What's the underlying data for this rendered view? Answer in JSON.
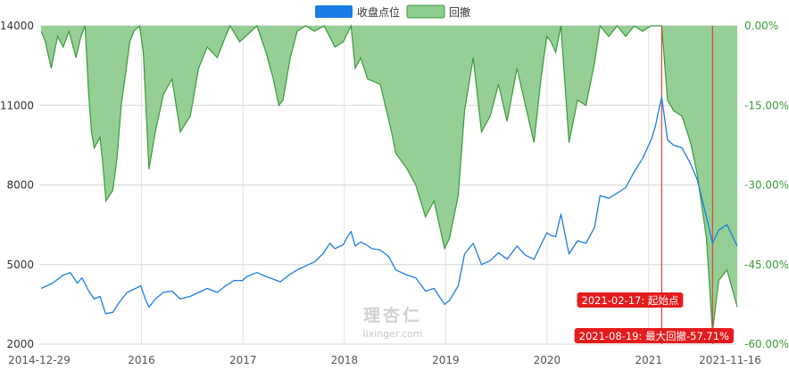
{
  "chart_data": {
    "type": "line",
    "x_range": [
      "2014-12-29",
      "2021-11-16"
    ],
    "x_tick_labels": [
      "2014-12-29",
      "2016",
      "2017",
      "2018",
      "2019",
      "2020",
      "2021",
      "2021-11-16"
    ],
    "y_left": {
      "range": [
        2000,
        14000
      ],
      "ticks": [
        2000,
        5000,
        8000,
        11000,
        14000
      ]
    },
    "y_right": {
      "range": [
        -0.6,
        0.0
      ],
      "tick_labels": [
        "0.00%",
        "-15.00%",
        "-30.00%",
        "-45.00%",
        "-60.00%"
      ]
    },
    "grid": true,
    "legend": {
      "position": "top-center"
    },
    "series": [
      {
        "name": "收盘点位",
        "axis": "left",
        "color": "#1a7de6",
        "points": [
          [
            "2015-01-05",
            4100
          ],
          [
            "2015-02-15",
            4300
          ],
          [
            "2015-03-25",
            4600
          ],
          [
            "2015-04-20",
            4700
          ],
          [
            "2015-05-15",
            4300
          ],
          [
            "2015-06-01",
            4500
          ],
          [
            "2015-06-25",
            4000
          ],
          [
            "2015-07-15",
            3700
          ],
          [
            "2015-08-05",
            3800
          ],
          [
            "2015-08-25",
            3150
          ],
          [
            "2015-09-20",
            3200
          ],
          [
            "2015-10-15",
            3600
          ],
          [
            "2015-11-10",
            3950
          ],
          [
            "2015-12-01",
            4050
          ],
          [
            "2015-12-30",
            4200
          ],
          [
            "2016-01-15",
            3700
          ],
          [
            "2016-01-28",
            3400
          ],
          [
            "2016-02-20",
            3700
          ],
          [
            "2016-03-20",
            3950
          ],
          [
            "2016-04-20",
            4000
          ],
          [
            "2016-05-20",
            3700
          ],
          [
            "2016-06-25",
            3800
          ],
          [
            "2016-07-25",
            3950
          ],
          [
            "2016-08-25",
            4100
          ],
          [
            "2016-09-30",
            3950
          ],
          [
            "2016-10-30",
            4200
          ],
          [
            "2016-11-30",
            4400
          ],
          [
            "2016-12-30",
            4400
          ],
          [
            "2017-01-15",
            4550
          ],
          [
            "2017-02-20",
            4700
          ],
          [
            "2017-03-25",
            4550
          ],
          [
            "2017-04-20",
            4450
          ],
          [
            "2017-05-15",
            4350
          ],
          [
            "2017-06-15",
            4600
          ],
          [
            "2017-07-15",
            4800
          ],
          [
            "2017-08-15",
            4950
          ],
          [
            "2017-09-15",
            5100
          ],
          [
            "2017-10-15",
            5400
          ],
          [
            "2017-11-10",
            5800
          ],
          [
            "2017-11-28",
            5600
          ],
          [
            "2017-12-28",
            5750
          ],
          [
            "2018-01-15",
            6100
          ],
          [
            "2018-01-25",
            6250
          ],
          [
            "2018-02-09",
            5700
          ],
          [
            "2018-03-01",
            5850
          ],
          [
            "2018-03-20",
            5750
          ],
          [
            "2018-04-10",
            5600
          ],
          [
            "2018-05-10",
            5550
          ],
          [
            "2018-06-10",
            5300
          ],
          [
            "2018-07-05",
            4800
          ],
          [
            "2018-08-15",
            4600
          ],
          [
            "2018-09-15",
            4500
          ],
          [
            "2018-10-20",
            4000
          ],
          [
            "2018-11-20",
            4100
          ],
          [
            "2018-12-28",
            3500
          ],
          [
            "2019-01-15",
            3650
          ],
          [
            "2019-02-15",
            4200
          ],
          [
            "2019-03-10",
            5400
          ],
          [
            "2019-04-10",
            5800
          ],
          [
            "2019-05-10",
            5000
          ],
          [
            "2019-06-10",
            5150
          ],
          [
            "2019-07-10",
            5450
          ],
          [
            "2019-08-10",
            5200
          ],
          [
            "2019-09-15",
            5700
          ],
          [
            "2019-10-15",
            5350
          ],
          [
            "2019-11-15",
            5200
          ],
          [
            "2019-12-31",
            6200
          ],
          [
            "2020-01-15",
            6100
          ],
          [
            "2020-02-01",
            6050
          ],
          [
            "2020-02-20",
            6900
          ],
          [
            "2020-03-20",
            5400
          ],
          [
            "2020-04-20",
            5900
          ],
          [
            "2020-05-20",
            5800
          ],
          [
            "2020-06-20",
            6400
          ],
          [
            "2020-07-10",
            7600
          ],
          [
            "2020-08-10",
            7500
          ],
          [
            "2020-09-10",
            7700
          ],
          [
            "2020-10-10",
            7900
          ],
          [
            "2020-11-10",
            8500
          ],
          [
            "2020-12-10",
            9000
          ],
          [
            "2021-01-10",
            9700
          ],
          [
            "2021-01-25",
            10200
          ],
          [
            "2021-02-10",
            11000
          ],
          [
            "2021-02-17",
            11300
          ],
          [
            "2021-03-01",
            10400
          ],
          [
            "2021-03-10",
            9700
          ],
          [
            "2021-04-01",
            9500
          ],
          [
            "2021-05-01",
            9400
          ],
          [
            "2021-06-01",
            8800
          ],
          [
            "2021-06-25",
            8200
          ],
          [
            "2021-07-28",
            6800
          ],
          [
            "2021-08-19",
            5800
          ],
          [
            "2021-09-10",
            6300
          ],
          [
            "2021-10-10",
            6500
          ],
          [
            "2021-11-16",
            5700
          ]
        ]
      },
      {
        "name": "回撤",
        "axis": "right",
        "type": "area",
        "color": "#3a9a3a",
        "fill": "#8fcc8f",
        "points": [
          [
            "2015-01-05",
            -0.01
          ],
          [
            "2015-01-20",
            -0.03
          ],
          [
            "2015-02-10",
            -0.08
          ],
          [
            "2015-03-05",
            -0.02
          ],
          [
            "2015-03-25",
            -0.04
          ],
          [
            "2015-04-15",
            -0.01
          ],
          [
            "2015-05-10",
            -0.06
          ],
          [
            "2015-05-28",
            -0.02
          ],
          [
            "2015-06-12",
            -0.0
          ],
          [
            "2015-06-25",
            -0.13
          ],
          [
            "2015-07-05",
            -0.2
          ],
          [
            "2015-07-15",
            -0.23
          ],
          [
            "2015-08-05",
            -0.21
          ],
          [
            "2015-08-15",
            -0.26
          ],
          [
            "2015-08-26",
            -0.33
          ],
          [
            "2015-09-20",
            -0.31
          ],
          [
            "2015-10-05",
            -0.25
          ],
          [
            "2015-10-20",
            -0.15
          ],
          [
            "2015-11-05",
            -0.09
          ],
          [
            "2015-11-20",
            -0.03
          ],
          [
            "2015-12-05",
            -0.01
          ],
          [
            "2015-12-25",
            -0.0
          ],
          [
            "2016-01-08",
            -0.05
          ],
          [
            "2016-01-28",
            -0.27
          ],
          [
            "2016-02-20",
            -0.2
          ],
          [
            "2016-03-20",
            -0.13
          ],
          [
            "2016-04-20",
            -0.1
          ],
          [
            "2016-05-20",
            -0.2
          ],
          [
            "2016-06-25",
            -0.17
          ],
          [
            "2016-07-25",
            -0.08
          ],
          [
            "2016-08-25",
            -0.04
          ],
          [
            "2016-09-30",
            -0.06
          ],
          [
            "2016-10-30",
            -0.02
          ],
          [
            "2016-11-15",
            -0.0
          ],
          [
            "2016-12-20",
            -0.03
          ],
          [
            "2017-01-10",
            -0.02
          ],
          [
            "2017-02-20",
            -0.0
          ],
          [
            "2017-03-25",
            -0.05
          ],
          [
            "2017-04-20",
            -0.1
          ],
          [
            "2017-05-10",
            -0.15
          ],
          [
            "2017-05-25",
            -0.14
          ],
          [
            "2017-06-20",
            -0.06
          ],
          [
            "2017-07-15",
            -0.01
          ],
          [
            "2017-08-15",
            -0.0
          ],
          [
            "2017-09-15",
            -0.01
          ],
          [
            "2017-10-20",
            -0.0
          ],
          [
            "2017-11-28",
            -0.04
          ],
          [
            "2017-12-28",
            -0.03
          ],
          [
            "2018-01-25",
            -0.0
          ],
          [
            "2018-02-09",
            -0.08
          ],
          [
            "2018-03-01",
            -0.06
          ],
          [
            "2018-03-25",
            -0.1
          ],
          [
            "2018-05-10",
            -0.11
          ],
          [
            "2018-06-20",
            -0.2
          ],
          [
            "2018-07-05",
            -0.24
          ],
          [
            "2018-08-15",
            -0.27
          ],
          [
            "2018-09-15",
            -0.3
          ],
          [
            "2018-10-20",
            -0.36
          ],
          [
            "2018-11-20",
            -0.33
          ],
          [
            "2018-12-28",
            -0.42
          ],
          [
            "2019-01-15",
            -0.4
          ],
          [
            "2019-02-15",
            -0.32
          ],
          [
            "2019-03-10",
            -0.16
          ],
          [
            "2019-04-10",
            -0.06
          ],
          [
            "2019-05-10",
            -0.2
          ],
          [
            "2019-06-10",
            -0.17
          ],
          [
            "2019-07-10",
            -0.11
          ],
          [
            "2019-08-10",
            -0.18
          ],
          [
            "2019-09-15",
            -0.08
          ],
          [
            "2019-10-15",
            -0.15
          ],
          [
            "2019-11-15",
            -0.22
          ],
          [
            "2019-12-10",
            -0.1
          ],
          [
            "2019-12-31",
            -0.02
          ],
          [
            "2020-01-15",
            -0.03
          ],
          [
            "2020-02-01",
            -0.05
          ],
          [
            "2020-02-20",
            -0.0
          ],
          [
            "2020-03-20",
            -0.22
          ],
          [
            "2020-04-20",
            -0.14
          ],
          [
            "2020-05-20",
            -0.15
          ],
          [
            "2020-06-20",
            -0.07
          ],
          [
            "2020-07-10",
            -0.0
          ],
          [
            "2020-08-10",
            -0.02
          ],
          [
            "2020-09-10",
            -0.0
          ],
          [
            "2020-10-10",
            -0.02
          ],
          [
            "2020-11-10",
            -0.0
          ],
          [
            "2020-12-10",
            -0.01
          ],
          [
            "2021-01-10",
            -0.0
          ],
          [
            "2021-02-17",
            -0.0
          ],
          [
            "2021-03-01",
            -0.08
          ],
          [
            "2021-03-10",
            -0.14
          ],
          [
            "2021-04-01",
            -0.16
          ],
          [
            "2021-05-01",
            -0.17
          ],
          [
            "2021-06-01",
            -0.22
          ],
          [
            "2021-06-25",
            -0.28
          ],
          [
            "2021-07-28",
            -0.4
          ],
          [
            "2021-08-19",
            -0.5771
          ],
          [
            "2021-09-10",
            -0.48
          ],
          [
            "2021-10-10",
            -0.46
          ],
          [
            "2021-11-16",
            -0.53
          ]
        ]
      }
    ],
    "markers": [
      {
        "date": "2021-02-17",
        "label": "2021-02-17: 起始点",
        "color": "#e04040"
      },
      {
        "date": "2021-08-19",
        "label": "2021-08-19: 最大回撤-57.71%",
        "color": "#e04040"
      }
    ]
  },
  "watermark": {
    "name": "理杏仁",
    "site": "lixinger.com"
  }
}
